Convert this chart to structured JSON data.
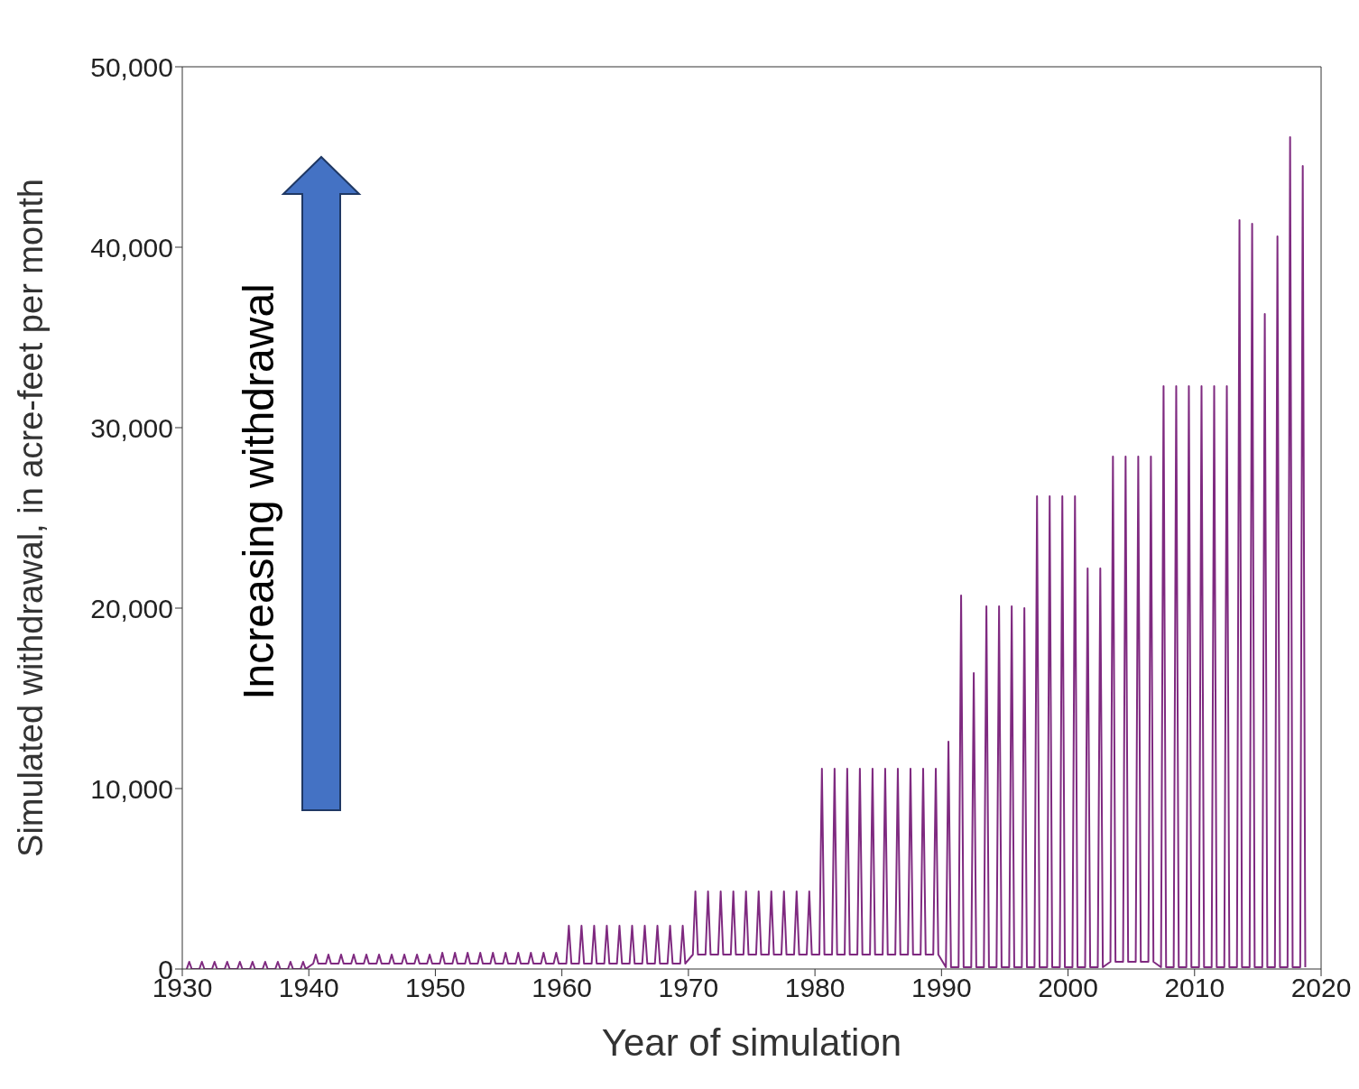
{
  "chart_data": {
    "type": "line",
    "xlabel": "Year of simulation",
    "ylabel": "Simulated withdrawal, in acre-feet per month",
    "annotations": [
      "Increasing withdrawal"
    ],
    "xlim": [
      1930,
      2020
    ],
    "xticks": [
      1930,
      1940,
      1950,
      1960,
      1970,
      1980,
      1990,
      2000,
      2010,
      2020
    ],
    "ylim": [
      0,
      50000
    ],
    "yticks": [
      0,
      {
        "value": 10000,
        "label": "10,000"
      },
      {
        "value": 20000,
        "label": "20,000"
      },
      {
        "value": 30000,
        "label": "30,000"
      },
      {
        "value": 40000,
        "label": "40,000"
      },
      {
        "value": 50000,
        "label": "50,000"
      }
    ],
    "x": [
      1930.35,
      1930.55,
      1930.75,
      1931.35,
      1931.55,
      1931.75,
      1932.35,
      1932.55,
      1932.75,
      1933.35,
      1933.55,
      1933.75,
      1934.35,
      1934.55,
      1934.75,
      1935.35,
      1935.55,
      1935.75,
      1936.35,
      1936.55,
      1936.75,
      1937.35,
      1937.55,
      1937.75,
      1938.35,
      1938.55,
      1938.75,
      1939.35,
      1939.55,
      1939.75,
      1940.35,
      1940.55,
      1940.75,
      1941.35,
      1941.55,
      1941.75,
      1942.35,
      1942.55,
      1942.75,
      1943.35,
      1943.55,
      1943.75,
      1944.35,
      1944.55,
      1944.75,
      1945.35,
      1945.55,
      1945.75,
      1946.35,
      1946.55,
      1946.75,
      1947.35,
      1947.55,
      1947.75,
      1948.35,
      1948.55,
      1948.75,
      1949.35,
      1949.55,
      1949.75,
      1950.35,
      1950.55,
      1950.75,
      1951.35,
      1951.55,
      1951.75,
      1952.35,
      1952.55,
      1952.75,
      1953.35,
      1953.55,
      1953.75,
      1954.35,
      1954.55,
      1954.75,
      1955.35,
      1955.55,
      1955.75,
      1956.35,
      1956.55,
      1956.75,
      1957.35,
      1957.55,
      1957.75,
      1958.35,
      1958.55,
      1958.75,
      1959.35,
      1959.55,
      1959.75,
      1960.35,
      1960.55,
      1960.75,
      1961.35,
      1961.55,
      1961.75,
      1962.35,
      1962.55,
      1962.75,
      1963.35,
      1963.55,
      1963.75,
      1964.35,
      1964.55,
      1964.75,
      1965.35,
      1965.55,
      1965.75,
      1966.35,
      1966.55,
      1966.75,
      1967.35,
      1967.55,
      1967.75,
      1968.35,
      1968.55,
      1968.75,
      1969.35,
      1969.55,
      1969.75,
      1970.35,
      1970.55,
      1970.75,
      1971.35,
      1971.55,
      1971.75,
      1972.35,
      1972.55,
      1972.75,
      1973.35,
      1973.55,
      1973.75,
      1974.35,
      1974.55,
      1974.75,
      1975.35,
      1975.55,
      1975.75,
      1976.35,
      1976.55,
      1976.75,
      1977.35,
      1977.55,
      1977.75,
      1978.35,
      1978.55,
      1978.75,
      1979.35,
      1979.55,
      1979.75,
      1980.35,
      1980.55,
      1980.75,
      1981.35,
      1981.55,
      1981.75,
      1982.35,
      1982.55,
      1982.75,
      1983.35,
      1983.55,
      1983.75,
      1984.35,
      1984.55,
      1984.75,
      1985.35,
      1985.55,
      1985.75,
      1986.35,
      1986.55,
      1986.75,
      1987.35,
      1987.55,
      1987.75,
      1988.35,
      1988.55,
      1988.75,
      1989.35,
      1989.55,
      1989.75,
      1990.35,
      1990.55,
      1990.75,
      1991.35,
      1991.55,
      1991.75,
      1992.35,
      1992.55,
      1992.75,
      1993.35,
      1993.55,
      1993.75,
      1994.35,
      1994.55,
      1994.75,
      1995.35,
      1995.55,
      1995.75,
      1996.35,
      1996.55,
      1996.75,
      1997.35,
      1997.55,
      1997.75,
      1998.35,
      1998.55,
      1998.75,
      1999.35,
      1999.55,
      1999.75,
      2000.35,
      2000.55,
      2000.75,
      2001.35,
      2001.55,
      2001.75,
      2002.35,
      2002.55,
      2002.75,
      2003.35,
      2003.55,
      2003.75,
      2004.35,
      2004.55,
      2004.75,
      2005.35,
      2005.55,
      2005.75,
      2006.35,
      2006.55,
      2006.75,
      2007.35,
      2007.55,
      2007.75,
      2008.35,
      2008.55,
      2008.75,
      2009.35,
      2009.55,
      2009.75,
      2010.35,
      2010.55,
      2010.75,
      2011.35,
      2011.55,
      2011.75,
      2012.35,
      2012.55,
      2012.75,
      2013.35,
      2013.55,
      2013.75,
      2014.35,
      2014.55,
      2014.75,
      2015.35,
      2015.55,
      2015.75,
      2016.35,
      2016.55,
      2016.75,
      2017.35,
      2017.55,
      2017.75,
      2018.35,
      2018.55,
      2018.75
    ],
    "series": [
      {
        "color": "#7f2a80",
        "values": [
          0,
          400,
          0,
          0,
          400,
          0,
          0,
          400,
          0,
          0,
          400,
          0,
          0,
          400,
          0,
          0,
          400,
          0,
          0,
          400,
          0,
          0,
          400,
          0,
          0,
          400,
          0,
          0,
          400,
          0,
          300,
          800,
          300,
          300,
          800,
          300,
          300,
          800,
          300,
          300,
          800,
          300,
          300,
          800,
          300,
          300,
          800,
          300,
          300,
          800,
          300,
          300,
          800,
          300,
          300,
          800,
          300,
          300,
          800,
          300,
          300,
          900,
          300,
          300,
          900,
          300,
          300,
          900,
          300,
          300,
          900,
          300,
          300,
          900,
          300,
          300,
          900,
          300,
          300,
          900,
          300,
          300,
          900,
          300,
          300,
          900,
          300,
          300,
          900,
          300,
          300,
          2400,
          300,
          300,
          2400,
          300,
          300,
          2400,
          300,
          300,
          2400,
          300,
          300,
          2400,
          300,
          300,
          2400,
          300,
          300,
          2400,
          300,
          300,
          2400,
          300,
          300,
          2400,
          300,
          300,
          2400,
          300,
          800,
          4300,
          800,
          800,
          4300,
          800,
          800,
          4300,
          800,
          800,
          4300,
          800,
          800,
          4300,
          800,
          800,
          4300,
          800,
          800,
          4300,
          800,
          800,
          4300,
          800,
          800,
          4300,
          800,
          800,
          4300,
          800,
          800,
          11100,
          800,
          800,
          11100,
          800,
          800,
          11100,
          800,
          800,
          11100,
          800,
          800,
          11100,
          800,
          800,
          11100,
          800,
          800,
          11100,
          800,
          800,
          11100,
          800,
          800,
          11100,
          800,
          800,
          11100,
          800,
          100,
          12600,
          100,
          100,
          20700,
          100,
          100,
          16400,
          100,
          100,
          20100,
          100,
          100,
          20100,
          100,
          100,
          20100,
          100,
          100,
          20000,
          100,
          100,
          26200,
          100,
          100,
          26200,
          100,
          100,
          26200,
          100,
          100,
          26200,
          100,
          100,
          22200,
          100,
          100,
          22200,
          100,
          400,
          28400,
          400,
          400,
          28400,
          400,
          400,
          28400,
          400,
          400,
          28400,
          400,
          100,
          32300,
          100,
          100,
          32300,
          100,
          100,
          32300,
          100,
          100,
          32300,
          100,
          100,
          32300,
          100,
          100,
          32300,
          100,
          100,
          41500,
          100,
          100,
          41300,
          100,
          100,
          36300,
          100,
          100,
          40600,
          100,
          100,
          46100,
          100,
          100,
          44500,
          100
        ]
      }
    ]
  }
}
